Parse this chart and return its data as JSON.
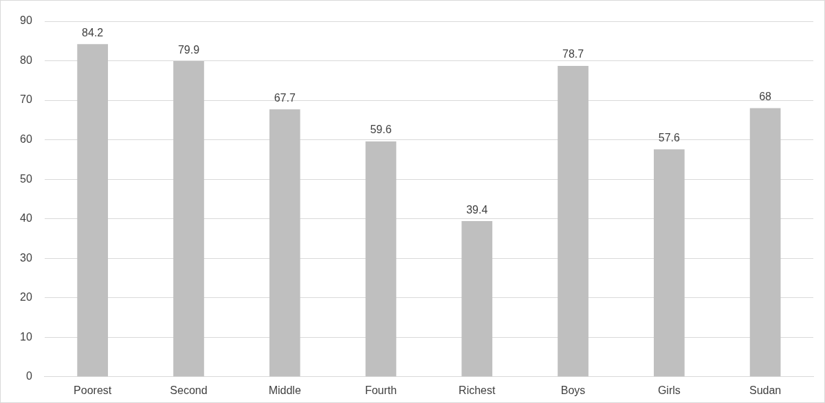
{
  "chart_data": {
    "type": "bar",
    "categories": [
      "Poorest",
      "Second",
      "Middle",
      "Fourth",
      "Richest",
      "Boys",
      "Girls",
      "Sudan"
    ],
    "values": [
      84.2,
      79.9,
      67.7,
      59.6,
      39.4,
      78.7,
      57.6,
      68
    ],
    "color": "#bfbfbf",
    "ylim": [
      0,
      90
    ],
    "yticks": [
      0,
      10,
      20,
      30,
      40,
      50,
      60,
      70,
      80,
      90
    ],
    "grid": "y",
    "legend": false,
    "data_labels": true
  }
}
